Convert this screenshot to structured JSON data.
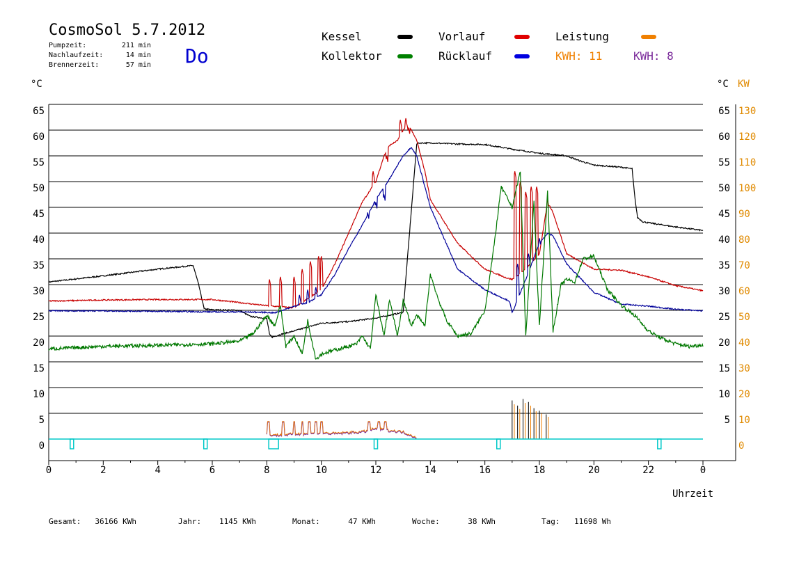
{
  "header": {
    "title": "CosmoSol 5.7.2012",
    "day": "Do",
    "times": [
      {
        "label": "Pumpzeit:",
        "value": "211 min"
      },
      {
        "label": "Nachlaufzeit:",
        "value": "14 min"
      },
      {
        "label": "Brennerzeit:",
        "value": "57 min"
      }
    ]
  },
  "legend": {
    "items": [
      {
        "label": "Kessel",
        "color": "#000000"
      },
      {
        "label": "Vorlauf",
        "color": "#e00000"
      },
      {
        "label": "Leistung",
        "color": "#f08000"
      },
      {
        "label": "Kollektor",
        "color": "#008000"
      },
      {
        "label": "Rücklauf",
        "color": "#0000e0"
      }
    ],
    "kwh_orange": "KWH: 11",
    "kwh_purple": "KWH: 8"
  },
  "axis": {
    "left_unit": "°C",
    "right_unit_c": "°C",
    "right_unit_kw": "KW",
    "xlabel": "Uhrzeit"
  },
  "colors": {
    "kessel": "#000000",
    "vorlauf": "#c80000",
    "ruecklauf": "#00009a",
    "kollektor": "#007800",
    "leistung": "#f08000",
    "kwh2": "#7a2a9a",
    "pump": "#00c8c8",
    "kw_axis": "#e08a00"
  },
  "footer": [
    {
      "label": "Gesamt:",
      "value": "36166 KWh"
    },
    {
      "label": "Jahr:",
      "value": "1145 KWh"
    },
    {
      "label": "Monat:",
      "value": "47 KWh"
    },
    {
      "label": "Woche:",
      "value": "38 KWh"
    },
    {
      "label": "Tag:",
      "value": "11698 Wh"
    }
  ],
  "chart_data": {
    "type": "line",
    "xlabel": "Uhrzeit",
    "ylabel": "°C",
    "y2label": "KW",
    "xlim": [
      0,
      24
    ],
    "ylim": [
      -2,
      65
    ],
    "y_ticks": [
      0,
      5,
      10,
      15,
      20,
      25,
      30,
      35,
      40,
      45,
      50,
      55,
      60,
      65
    ],
    "y_right_c_ticks": [
      5,
      10,
      15,
      20,
      25,
      30,
      35,
      40,
      45,
      50,
      55,
      60,
      65
    ],
    "y_right_kw_ticks": [
      0,
      10,
      20,
      30,
      40,
      50,
      60,
      70,
      80,
      90,
      100,
      110,
      120,
      130
    ],
    "x_ticks": [
      "0",
      "2",
      "4",
      "6",
      "8",
      "10",
      "12",
      "14",
      "16",
      "18",
      "20",
      "22",
      "0"
    ],
    "grid": "horizontal",
    "series": [
      {
        "name": "Kessel",
        "x": [
          0,
          2,
          4,
          5.3,
          5.5,
          5.7,
          6,
          7,
          7.4,
          7.6,
          8.0,
          8.1,
          8.2,
          8.5,
          9,
          10,
          11,
          12,
          13,
          13.5,
          13.6,
          14,
          15,
          16,
          17,
          18,
          19,
          19.5,
          20,
          21,
          21.4,
          21.5,
          21.6,
          21.8,
          22,
          23,
          24
        ],
        "y": [
          30.5,
          31.7,
          33,
          33.7,
          30,
          25.3,
          25.1,
          25,
          23.8,
          23.7,
          23.4,
          20.3,
          19.8,
          20.3,
          21,
          22.5,
          22.8,
          23.5,
          24.6,
          57.3,
          57.5,
          57.5,
          57.3,
          57.2,
          56.3,
          55.5,
          55,
          54,
          53.2,
          52.8,
          52.5,
          47,
          43,
          42.2,
          42,
          41.2,
          40.5
        ]
      },
      {
        "name": "Vorlauf",
        "x": [
          0,
          2,
          4,
          6,
          7,
          8,
          9,
          10,
          10.5,
          11,
          11.5,
          12,
          12.3,
          12.5,
          12.8,
          13,
          13.2,
          13.5,
          13.8,
          14,
          15,
          16,
          16.8,
          17,
          17.5,
          18,
          18.3,
          18.5,
          19,
          20,
          21,
          22,
          23,
          24
        ],
        "y": [
          26.8,
          27,
          27.1,
          27.1,
          26.5,
          25.9,
          25.5,
          29,
          34,
          40,
          46,
          50,
          55,
          57,
          58,
          60,
          61,
          58,
          52,
          46.5,
          38,
          33,
          31.3,
          31,
          33,
          36,
          46,
          44,
          36,
          33,
          32.8,
          31.5,
          29.8,
          28.8
        ]
      },
      {
        "name": "Rücklauf",
        "x": [
          0,
          2,
          4,
          6,
          7,
          8,
          8.3,
          9,
          9.5,
          10,
          10.5,
          11,
          11.5,
          12,
          12.5,
          13,
          13.3,
          13.5,
          14,
          15,
          16,
          16.9,
          17,
          17.5,
          18,
          18.3,
          18.5,
          19,
          20,
          21,
          22,
          23,
          24
        ],
        "y": [
          24.9,
          24.9,
          24.8,
          24.7,
          24.7,
          24.6,
          24.5,
          25.8,
          26.5,
          28,
          32,
          37,
          41.5,
          46.5,
          50.5,
          55,
          56.7,
          55,
          45,
          33,
          29,
          26.8,
          24.5,
          31,
          38,
          40,
          39.5,
          34,
          28.5,
          26.2,
          25.8,
          25.2,
          24.9
        ]
      },
      {
        "name": "Kollektor",
        "x": [
          0,
          2,
          4,
          6,
          7,
          7.5,
          8,
          8.3,
          8.5,
          8.7,
          9,
          9.3,
          9.5,
          9.8,
          10,
          10.3,
          11,
          11.3,
          11.5,
          11.8,
          12,
          12.3,
          12.5,
          12.8,
          13,
          13.3,
          13.5,
          13.8,
          14,
          14.3,
          14.6,
          15,
          15.5,
          16,
          16.3,
          16.6,
          17,
          17.3,
          17.5,
          17.8,
          18,
          18.3,
          18.5,
          18.8,
          19,
          19.3,
          19.6,
          20,
          20.5,
          21,
          21.5,
          22,
          22.5,
          23,
          23.5,
          24
        ],
        "y": [
          17.5,
          18,
          18.2,
          18.5,
          19,
          20.5,
          24,
          22,
          26,
          18,
          20,
          16.5,
          23,
          15.5,
          16.5,
          17,
          18,
          18.5,
          20,
          17.5,
          28,
          20,
          27,
          20,
          27,
          22,
          24,
          22,
          32,
          27,
          23,
          20,
          20.5,
          25,
          36,
          49,
          45,
          52,
          20,
          46,
          22,
          48,
          21,
          30,
          31,
          30.5,
          35,
          35.5,
          29,
          26,
          24,
          21,
          19.5,
          18.5,
          18,
          18.3
        ]
      }
    ],
    "power": {
      "name": "Leistung",
      "x": [
        8,
        8.5,
        9,
        9.5,
        10,
        10.5,
        11,
        11.5,
        12,
        12.5,
        13,
        13.5,
        17,
        17.5,
        18,
        18.5
      ],
      "y": [
        0.8,
        0.7,
        0.9,
        1.0,
        1.1,
        1.0,
        1.2,
        1.3,
        2.0,
        1.6,
        1.3,
        0.2,
        3.5,
        4.0,
        3.2,
        1.0
      ]
    },
    "pump_on": [
      0.85,
      5.75,
      8.25,
      12.0,
      16.5,
      22.4
    ]
  }
}
